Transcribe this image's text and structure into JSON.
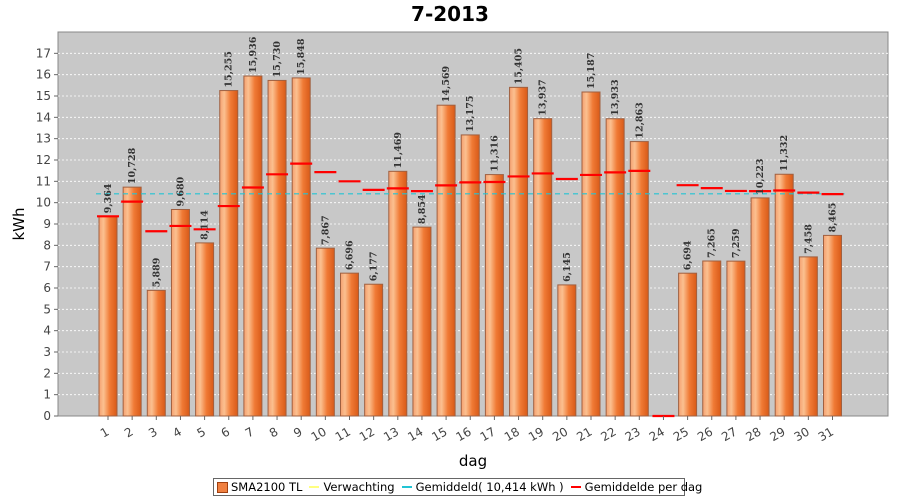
{
  "chart_data": {
    "type": "bar",
    "title": "7-2013",
    "xlabel": "dag",
    "ylabel": "kWh",
    "ylim": [
      0,
      18
    ],
    "yticks": [
      "0",
      "1",
      "2",
      "3",
      "4",
      "5",
      "6",
      "7",
      "8",
      "9",
      "10",
      "11",
      "12",
      "13",
      "14",
      "15",
      "16",
      "17"
    ],
    "categories": [
      "1",
      "2",
      "3",
      "4",
      "5",
      "6",
      "7",
      "8",
      "9",
      "10",
      "11",
      "12",
      "13",
      "14",
      "15",
      "16",
      "17",
      "18",
      "19",
      "20",
      "21",
      "22",
      "23",
      "24",
      "25",
      "26",
      "27",
      "28",
      "29",
      "30",
      "31"
    ],
    "series": [
      {
        "name": "SMA2100 TL",
        "values": [
          9.364,
          10.728,
          5.889,
          9.68,
          8.114,
          15.255,
          15.936,
          15.73,
          15.848,
          7.867,
          6.696,
          6.177,
          11.469,
          8.854,
          14.569,
          13.175,
          11.316,
          15.405,
          13.937,
          6.145,
          15.187,
          13.933,
          12.863,
          0,
          6.694,
          7.265,
          7.259,
          10.223,
          11.332,
          7.458,
          8.465
        ],
        "labels": [
          "9,364",
          "10,728",
          "5,889",
          "9,680",
          "8,114",
          "15,255",
          "15,936",
          "15,730",
          "15,848",
          "7,867",
          "6,696",
          "6,177",
          "11,469",
          "8,854",
          "14,569",
          "13,175",
          "11,316",
          "15,405",
          "13,937",
          "6,145",
          "15,187",
          "13,933",
          "12,863",
          "",
          "6,694",
          "7,265",
          "7,259",
          "10,223",
          "11,332",
          "7,458",
          "8,465"
        ],
        "color": "#f08040"
      },
      {
        "name": "Gemiddelde per dag",
        "values": [
          9.36,
          10.05,
          8.66,
          8.91,
          8.75,
          9.84,
          10.71,
          11.33,
          11.83,
          11.43,
          11.0,
          10.6,
          10.67,
          10.54,
          10.81,
          10.95,
          10.97,
          11.23,
          11.37,
          11.11,
          11.3,
          11.42,
          11.49,
          0,
          10.82,
          10.68,
          10.55,
          10.54,
          10.57,
          10.47,
          10.4
        ],
        "color": "#ff0000"
      }
    ],
    "average": {
      "value": 10.414,
      "color": "#22c4d4"
    },
    "legend": {
      "position": "bottom",
      "items": [
        {
          "label": "SMA2100 TL",
          "kind": "bar",
          "color": "#f08040"
        },
        {
          "label": "Verwachting",
          "kind": "line",
          "color": "#ffff80"
        },
        {
          "label": "Gemiddeld( 10,414 kWh )",
          "kind": "line",
          "color": "#22c4d4"
        },
        {
          "label": "Gemiddelde per dag",
          "kind": "line",
          "color": "#ff0000"
        }
      ]
    }
  }
}
